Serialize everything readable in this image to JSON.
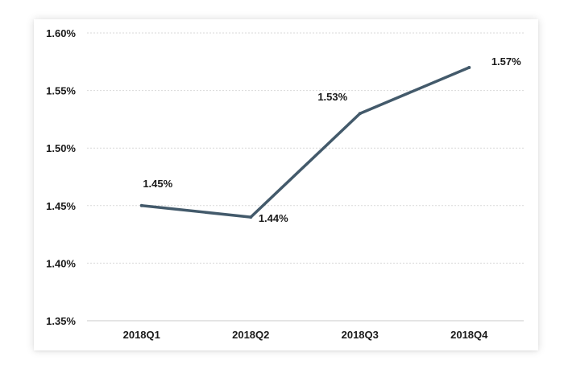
{
  "chart_data": {
    "type": "line",
    "title": "",
    "xlabel": "",
    "ylabel": "",
    "categories": [
      "2018Q1",
      "2018Q2",
      "2018Q3",
      "2018Q4"
    ],
    "series": [
      {
        "values": [
          1.45,
          1.44,
          1.53,
          1.57
        ],
        "labels": [
          "1.45%",
          "1.44%",
          "1.53%",
          "1.57%"
        ]
      }
    ],
    "ylim": [
      1.35,
      1.6
    ],
    "yticks": [
      1.35,
      1.4,
      1.45,
      1.5,
      1.55,
      1.6
    ],
    "ytick_labels": [
      "1.35%",
      "1.40%",
      "1.45%",
      "1.50%",
      "1.55%",
      "1.60%"
    ],
    "grid": true,
    "legend": "none",
    "colors": {
      "line": "#435a6b",
      "grid": "#d9d9d9",
      "axis": "#c8c8c8",
      "text": "#1a1a1a"
    }
  }
}
